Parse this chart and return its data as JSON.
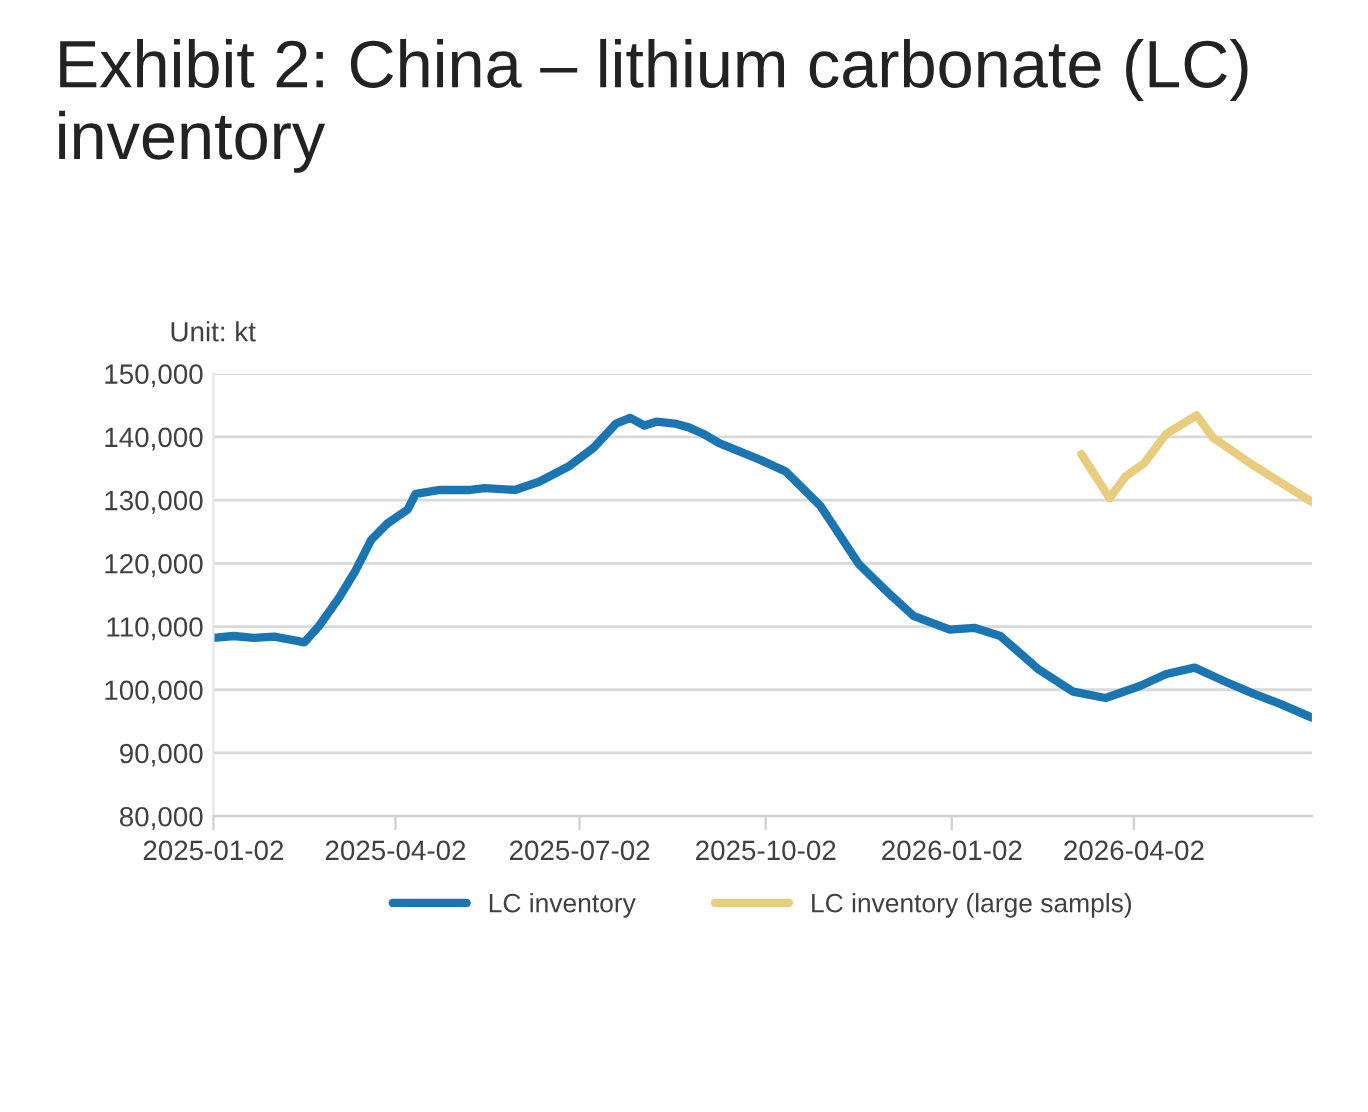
{
  "chart_data": {
    "type": "line",
    "title": "Exhibit 2: China – lithium carbonate (LC) inventory",
    "ylabel": "Unit: kt",
    "xlim": [
      "2025-01-02",
      "2026-06-29"
    ],
    "xticks": [
      "2025-01-02",
      "2025-04-02",
      "2025-07-02",
      "2025-10-02",
      "2026-01-02",
      "2026-04-02"
    ],
    "ylim": [
      80000,
      150000
    ],
    "yticks": [
      {
        "value": 80000,
        "label": "80,000"
      },
      {
        "value": 90000,
        "label": "90,000"
      },
      {
        "value": 100000,
        "label": "100,000"
      },
      {
        "value": 110000,
        "label": "110,000"
      },
      {
        "value": 120000,
        "label": "120,000"
      },
      {
        "value": 130000,
        "label": "130,000"
      },
      {
        "value": 140000,
        "label": "140,000"
      },
      {
        "value": 150000,
        "label": "150,000"
      }
    ],
    "grid": "y",
    "legend": "bottom",
    "marker": "none",
    "line_style": "solid",
    "series": [
      {
        "name": "LC inventory",
        "color": "#1a75b0",
        "x": [
          "2025-01-02",
          "2025-01-12",
          "2025-01-22",
          "2025-02-01",
          "2025-02-11",
          "2025-02-16",
          "2025-02-23",
          "2025-03-05",
          "2025-03-13",
          "2025-03-21",
          "2025-03-29",
          "2025-04-08",
          "2025-04-12",
          "2025-04-24",
          "2025-05-09",
          "2025-05-16",
          "2025-05-31",
          "2025-06-12",
          "2025-06-27",
          "2025-07-09",
          "2025-07-20",
          "2025-07-27",
          "2025-08-03",
          "2025-08-09",
          "2025-08-18",
          "2025-08-25",
          "2025-09-01",
          "2025-09-09",
          "2025-09-29",
          "2025-10-12",
          "2025-10-29",
          "2025-11-17",
          "2025-12-02",
          "2025-12-14",
          "2026-01-01",
          "2026-01-13",
          "2026-01-26",
          "2026-02-14",
          "2026-03-03",
          "2026-03-19",
          "2026-04-05",
          "2026-04-18",
          "2026-05-02",
          "2026-05-17",
          "2026-05-31",
          "2026-06-13",
          "2026-06-29"
        ],
        "values": [
          108200,
          108500,
          108200,
          108400,
          107800,
          107500,
          110000,
          114500,
          118700,
          123700,
          126300,
          128500,
          131000,
          131600,
          131600,
          131900,
          131600,
          132900,
          135400,
          138300,
          142100,
          143000,
          141800,
          142400,
          142100,
          141500,
          140500,
          139000,
          136400,
          134500,
          129100,
          119900,
          115200,
          111700,
          109500,
          109800,
          108500,
          103200,
          99700,
          98700,
          100600,
          102500,
          103500,
          101300,
          99400,
          97800,
          95600
        ]
      },
      {
        "name": "LC inventory (large sampls)",
        "color": "#e8cd7e",
        "x": [
          "2026-03-07",
          "2026-03-21",
          "2026-03-29",
          "2026-04-07",
          "2026-04-18",
          "2026-05-03",
          "2026-05-11",
          "2026-05-21",
          "2026-05-31",
          "2026-06-13",
          "2026-06-29"
        ],
        "values": [
          137300,
          130300,
          133800,
          135800,
          140500,
          143400,
          139900,
          137700,
          135500,
          132900,
          129700
        ]
      }
    ]
  }
}
